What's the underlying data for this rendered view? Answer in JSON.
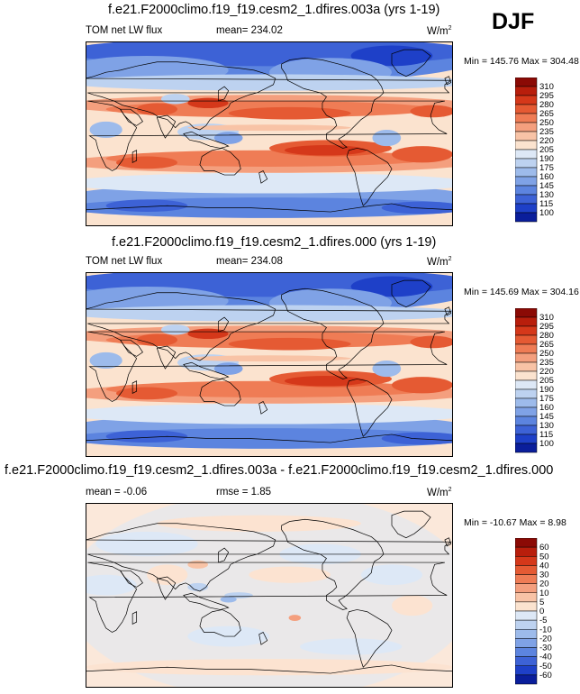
{
  "season": "DJF",
  "panels": [
    {
      "title": "f.e21.F2000climo.f19_f19.cesm2_1.dfires.003a (yrs 1-19)",
      "variable": "TOM net LW flux",
      "stat1": "mean= 234.02",
      "stat2": "",
      "units": "W/m",
      "units_exp": "2",
      "minmax": "Min = 145.76 Max = 304.48"
    },
    {
      "title": "f.e21.F2000climo.f19_f19.cesm2_1.dfires.000 (yrs 1-19)",
      "variable": "TOM net LW flux",
      "stat1": "mean= 234.08",
      "stat2": "",
      "units": "W/m",
      "units_exp": "2",
      "minmax": "Min = 145.69 Max = 304.16"
    },
    {
      "title": "f.e21.F2000climo.f19_f19.cesm2_1.dfires.003a - f.e21.F2000climo.f19_f19.cesm2_1.dfires.000",
      "variable": "mean =  -0.06",
      "stat1": "rmse =   1.85",
      "stat2": "",
      "units": "W/m",
      "units_exp": "2",
      "minmax": "Min = -10.67 Max =   8.98"
    }
  ],
  "chart_data": [
    {
      "type": "heatmap",
      "title": "f.e21.F2000climo.f19_f19.cesm2_1.dfires.003a (yrs 1-19)",
      "field": "TOM net LW flux",
      "units": "W/m2",
      "mean": 234.02,
      "min": 145.76,
      "max": 304.48,
      "colorbar_levels": [
        100,
        115,
        130,
        145,
        160,
        175,
        190,
        205,
        220,
        235,
        250,
        265,
        280,
        295,
        310
      ],
      "colorbar_labels": [
        "310",
        "295",
        "280",
        "265",
        "250",
        "235",
        "220",
        "205",
        "190",
        "175",
        "160",
        "145",
        "130",
        "115",
        "100"
      ],
      "colorbar_colors": [
        "#8b0a05",
        "#b81e0c",
        "#d5381a",
        "#e55a33",
        "#ef7c55",
        "#f49f7e",
        "#f8c3a6",
        "#fbe3cf",
        "#dde8f6",
        "#bdd2f0",
        "#9dbbeb",
        "#7fa2e6",
        "#5c84df",
        "#3d62d6",
        "#1e40c8",
        "#0a1e9b"
      ]
    },
    {
      "type": "heatmap",
      "title": "f.e21.F2000climo.f19_f19.cesm2_1.dfires.000 (yrs 1-19)",
      "field": "TOM net LW flux",
      "units": "W/m2",
      "mean": 234.08,
      "min": 145.69,
      "max": 304.16,
      "colorbar_levels": [
        100,
        115,
        130,
        145,
        160,
        175,
        190,
        205,
        220,
        235,
        250,
        265,
        280,
        295,
        310
      ],
      "colorbar_labels": [
        "310",
        "295",
        "280",
        "265",
        "250",
        "235",
        "220",
        "205",
        "190",
        "175",
        "160",
        "145",
        "130",
        "115",
        "100"
      ],
      "colorbar_colors": [
        "#8b0a05",
        "#b81e0c",
        "#d5381a",
        "#e55a33",
        "#ef7c55",
        "#f49f7e",
        "#f8c3a6",
        "#fbe3cf",
        "#dde8f6",
        "#bdd2f0",
        "#9dbbeb",
        "#7fa2e6",
        "#5c84df",
        "#3d62d6",
        "#1e40c8",
        "#0a1e9b"
      ]
    },
    {
      "type": "heatmap",
      "title": "f.e21.F2000climo.f19_f19.cesm2_1.dfires.003a - f.e21.F2000climo.f19_f19.cesm2_1.dfires.000",
      "units": "W/m2",
      "mean": -0.06,
      "rmse": 1.85,
      "min": -10.67,
      "max": 8.98,
      "colorbar_levels": [
        -60,
        -50,
        -40,
        -30,
        -20,
        -10,
        -5,
        0,
        5,
        10,
        20,
        30,
        40,
        50,
        60
      ],
      "colorbar_labels": [
        "60",
        "50",
        "40",
        "30",
        "20",
        "10",
        "5",
        "0",
        "-5",
        "-10",
        "-20",
        "-30",
        "-40",
        "-50",
        "-60"
      ],
      "colorbar_colors": [
        "#8b0a05",
        "#b81e0c",
        "#d5381a",
        "#e55a33",
        "#ef7c55",
        "#f49f7e",
        "#f8c3a6",
        "#fbe3cf",
        "#dde8f6",
        "#bdd2f0",
        "#9dbbeb",
        "#7fa2e6",
        "#5c84df",
        "#3d62d6",
        "#1e40c8",
        "#0a1e9b"
      ]
    }
  ]
}
